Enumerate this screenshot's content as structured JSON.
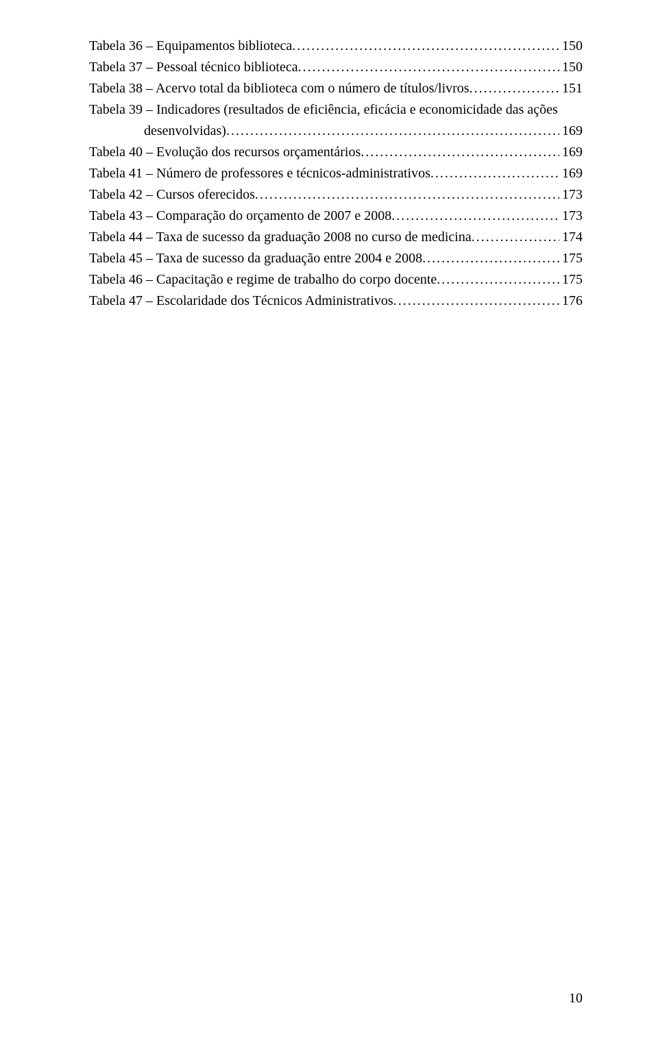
{
  "toc": {
    "entries": [
      {
        "label": "Tabela 36 – Equipamentos biblioteca",
        "page": "150",
        "indent": false
      },
      {
        "label": "Tabela 37 – Pessoal técnico biblioteca",
        "page": "150",
        "indent": false
      },
      {
        "label": "Tabela 38 – Acervo total da biblioteca com o número de títulos/livros",
        "page": "151",
        "indent": false
      },
      {
        "label": "Tabela 39 – Indicadores (resultados de eficiência, eficácia e economicidade das ações",
        "page": "",
        "indent": false
      },
      {
        "label": "desenvolvidas)",
        "page": "169",
        "indent": true
      },
      {
        "label": "Tabela 40 – Evolução dos recursos orçamentários",
        "page": "169",
        "indent": false
      },
      {
        "label": "Tabela 41 – Número de professores e técnicos-administrativos",
        "page": "169",
        "indent": false
      },
      {
        "label": "Tabela 42 – Cursos oferecidos",
        "page": "173",
        "indent": false
      },
      {
        "label": "Tabela 43 – Comparação do orçamento de 2007 e 2008",
        "page": "173",
        "indent": false
      },
      {
        "label": "Tabela 44 – Taxa de sucesso da graduação 2008 no curso de medicina",
        "page": "174",
        "indent": false
      },
      {
        "label": "Tabela 45 – Taxa de sucesso da graduação entre 2004 e 2008",
        "page": "175",
        "indent": false
      },
      {
        "label": "Tabela 46 – Capacitação e regime de trabalho do corpo docente",
        "page": "175",
        "indent": false
      },
      {
        "label": "Tabela 47 – Escolaridade dos Técnicos Administrativos",
        "page": "176",
        "indent": false
      }
    ]
  },
  "page_number": "10"
}
